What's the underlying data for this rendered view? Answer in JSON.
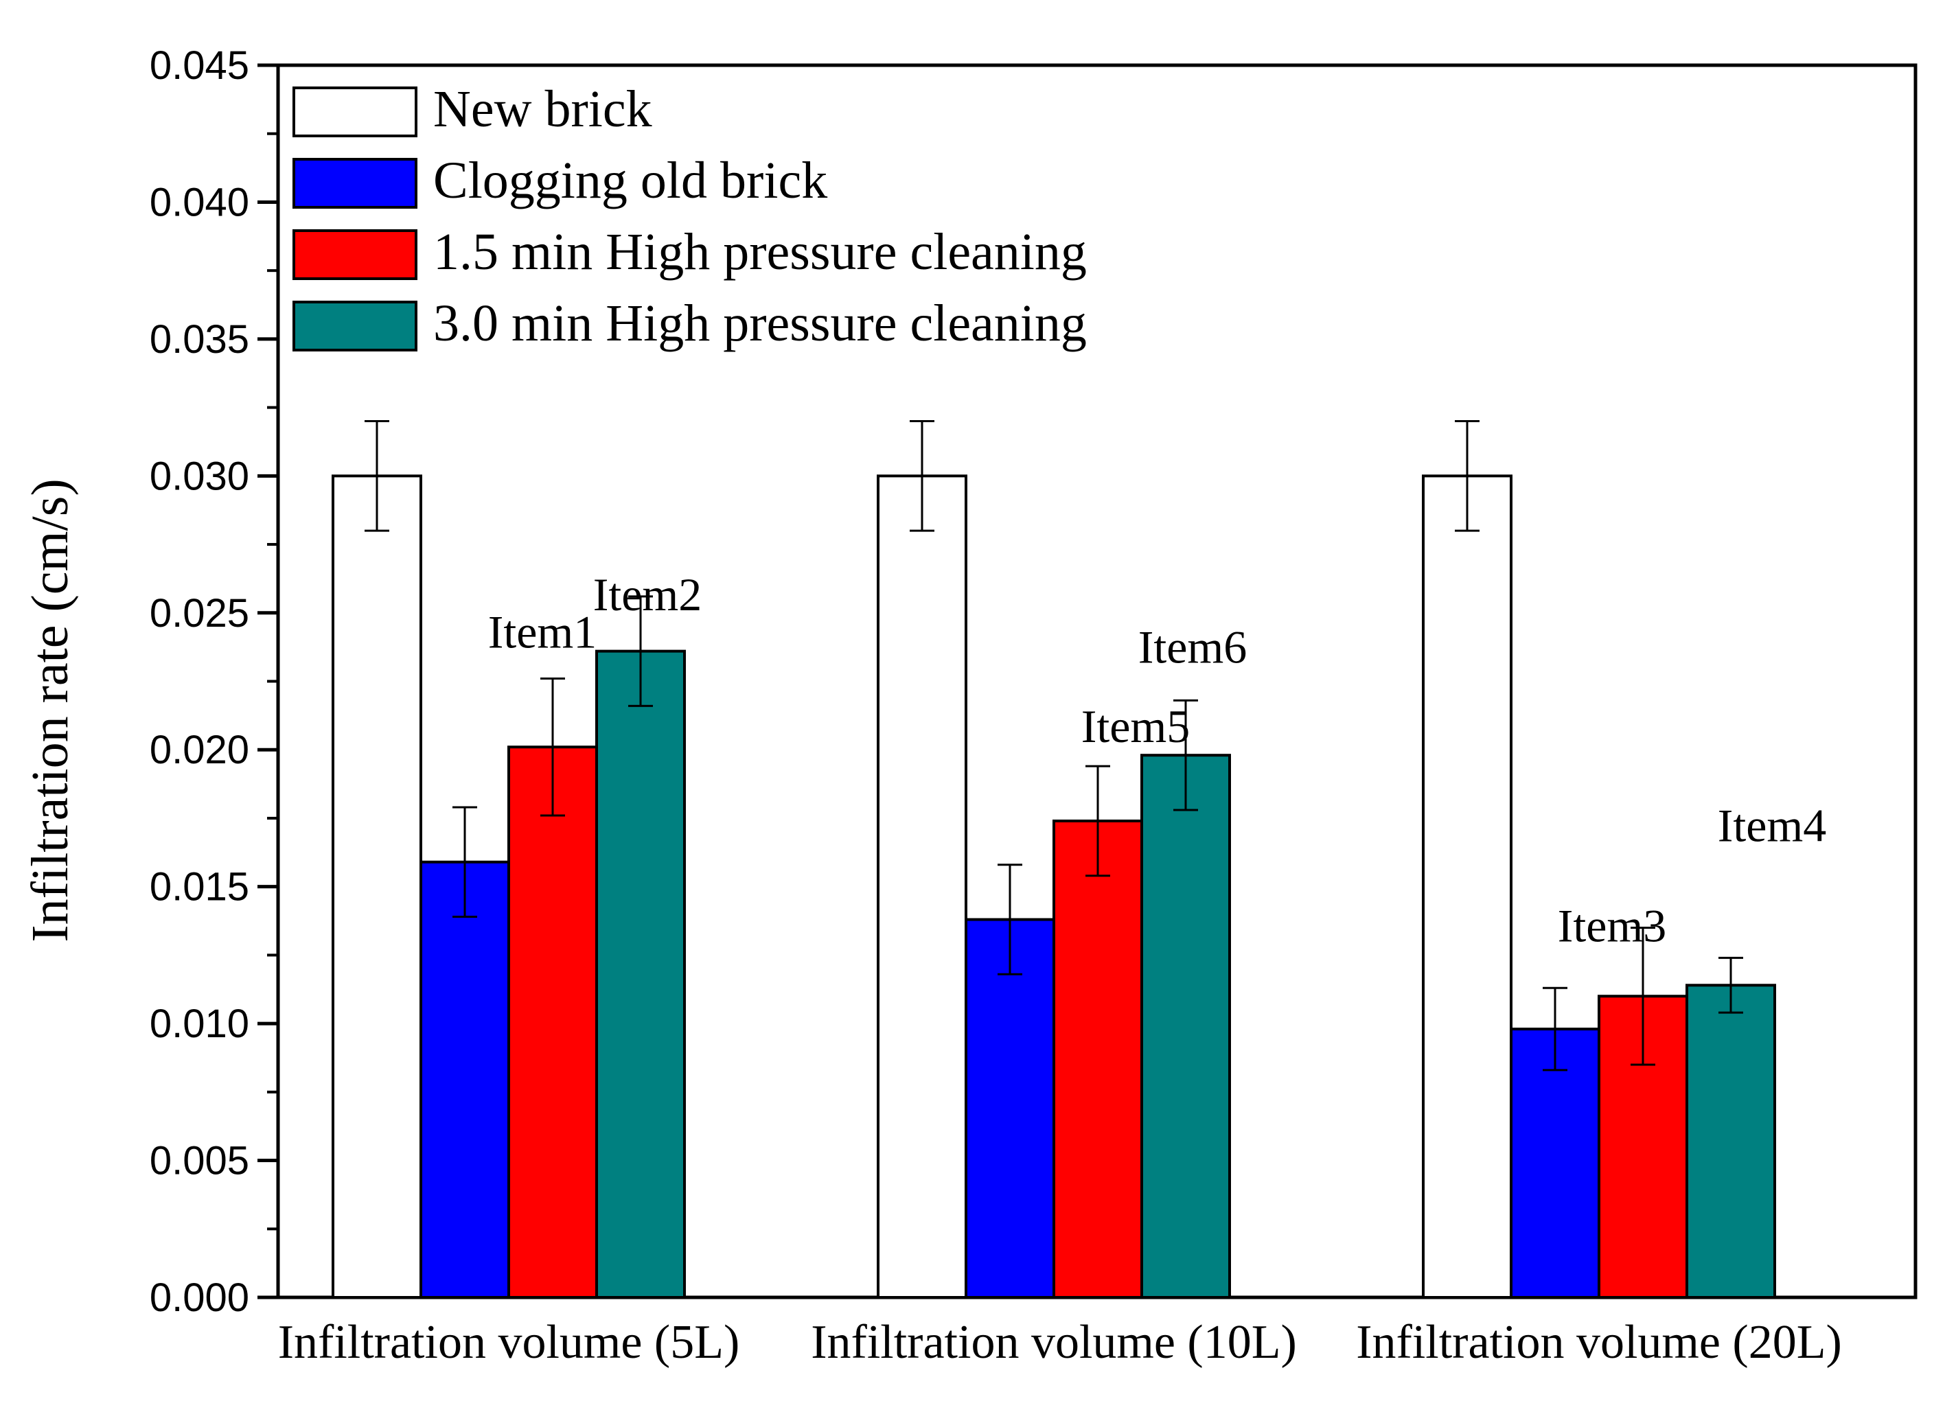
{
  "chart_data": {
    "type": "bar",
    "title": "",
    "xlabel": "",
    "ylabel": "Infiltration rate (cm/s)",
    "ylim": [
      0,
      0.045
    ],
    "yticks": [
      "0.000",
      "0.005",
      "0.010",
      "0.015",
      "0.020",
      "0.025",
      "0.030",
      "0.035",
      "0.040",
      "0.045"
    ],
    "categories": [
      "Infiltration volume (5L)",
      "Infiltration volume (10L)",
      "Infiltration volume (20L)"
    ],
    "legend_position": "top-left",
    "series": [
      {
        "name": "New brick",
        "color": "#ffffff",
        "values": [
          0.03,
          0.03,
          0.03
        ],
        "errors": [
          0.002,
          0.002,
          0.002
        ]
      },
      {
        "name": "Clogging old brick",
        "color": "#0000ff",
        "values": [
          0.0159,
          0.0138,
          0.0098
        ],
        "errors": [
          0.002,
          0.002,
          0.0015
        ]
      },
      {
        "name": "1.5 min High pressure cleaning",
        "color": "#ff0000",
        "values": [
          0.0201,
          0.0174,
          0.011
        ],
        "errors": [
          0.0025,
          0.002,
          0.0025
        ]
      },
      {
        "name": "3.0 min High pressure cleaning",
        "color": "#008080",
        "values": [
          0.0236,
          0.0198,
          0.0114
        ],
        "errors": [
          0.002,
          0.002,
          0.001
        ]
      }
    ],
    "annotations": [
      {
        "text": "Item1",
        "category": 0,
        "series": 2
      },
      {
        "text": "Item2",
        "category": 0,
        "series": 3
      },
      {
        "text": "Item5",
        "category": 1,
        "series": 2
      },
      {
        "text": "Item6",
        "category": 1,
        "series": 3
      },
      {
        "text": "Item3",
        "category": 2,
        "series": 2
      },
      {
        "text": "Item4",
        "category": 2,
        "series": 3
      }
    ]
  }
}
